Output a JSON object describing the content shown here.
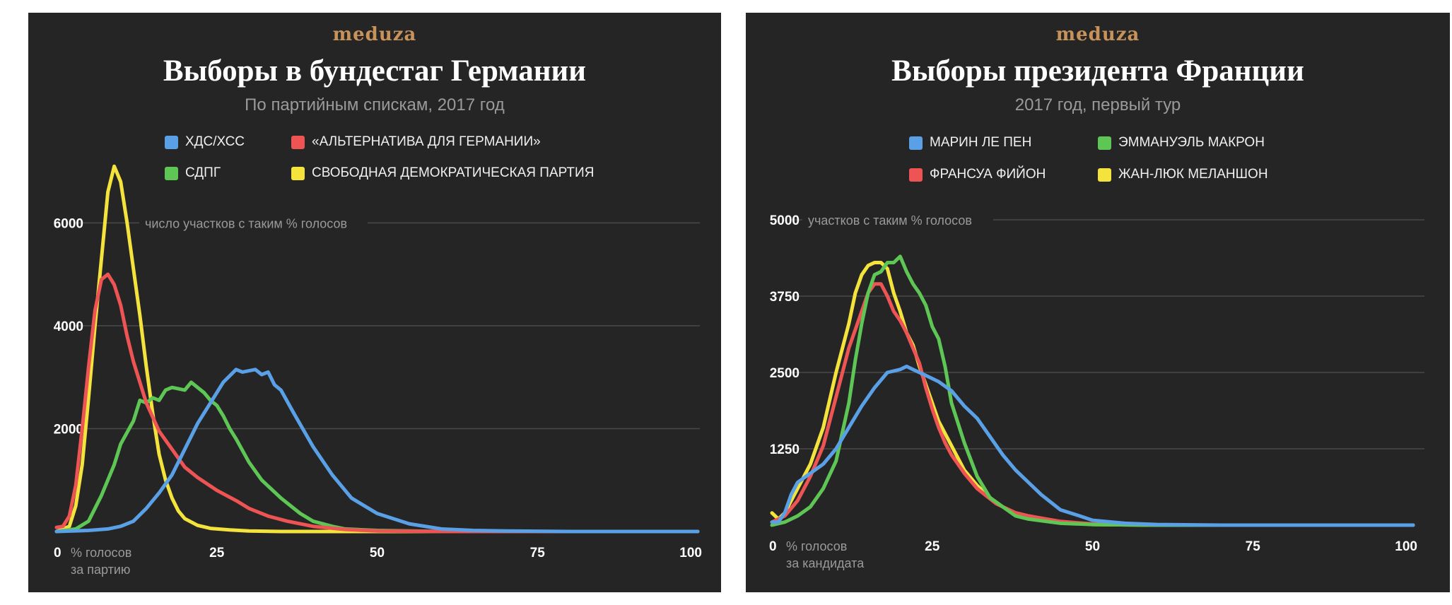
{
  "colors": {
    "blue": "#5aa0e6",
    "red": "#ee5454",
    "green": "#5ec655",
    "yellow": "#f3e33c",
    "background": "#252525",
    "grid": "#4a4a4a"
  },
  "charts": [
    {
      "logo": "meduza",
      "title": "Выборы в бундестаг Германии",
      "subtitle": "По партийным спискам, 2017 год",
      "legend": [
        {
          "label": "ХДС/ХСС",
          "color": "#5aa0e6"
        },
        {
          "label": "«АЛЬТЕРНАТИВА ДЛЯ ГЕРМАНИИ»",
          "color": "#ee5454"
        },
        {
          "label": "СДПГ",
          "color": "#5ec655"
        },
        {
          "label": "СВОБОДНАЯ ДЕМОКРАТИЧЕСКАЯ ПАРТИЯ",
          "color": "#f3e33c"
        }
      ],
      "y_axis_note": "число участков с таким % голосов",
      "x_axis_note": [
        "% голосов",
        "за партию"
      ]
    },
    {
      "logo": "meduza",
      "title": "Выборы президента Франции",
      "subtitle": "2017 год, первый тур",
      "legend": [
        {
          "label": "МАРИН ЛЕ ПЕН",
          "color": "#5aa0e6"
        },
        {
          "label": "ЭММАНУЭЛЬ МАКРОН",
          "color": "#5ec655"
        },
        {
          "label": "ФРАНСУА ФИЙОН",
          "color": "#ee5454"
        },
        {
          "label": "ЖАН-ЛЮК МЕЛАНШОН",
          "color": "#f3e33c"
        }
      ],
      "y_axis_note": "участков с таким % голосов",
      "x_axis_note": [
        "% голосов",
        "за кандидата"
      ]
    }
  ],
  "chart_data": [
    {
      "type": "line",
      "title": "Выборы в бундестаг Германии",
      "subtitle": "По партийным спискам, 2017 год",
      "xlabel": "% голосов за партию",
      "ylabel": "число участков с таким % голосов",
      "xlim": [
        0,
        100
      ],
      "ylim": [
        0,
        7200
      ],
      "x_ticks": [
        0,
        25,
        50,
        75,
        100
      ],
      "y_ticks": [
        0,
        2000,
        4000,
        6000
      ],
      "y_tick_labels": [
        "",
        "2000",
        "4000",
        "6000"
      ],
      "grid": true,
      "legend_position": "top",
      "series": [
        {
          "name": "ХДС/ХСС",
          "color": "#5aa0e6",
          "x": [
            0,
            5,
            8,
            10,
            12,
            14,
            16,
            18,
            20,
            22,
            24,
            26,
            28,
            29,
            31,
            32,
            33,
            34,
            35,
            37,
            40,
            43,
            46,
            50,
            55,
            60,
            65,
            70,
            80,
            100
          ],
          "y": [
            0,
            20,
            50,
            100,
            200,
            450,
            750,
            1100,
            1600,
            2100,
            2500,
            2900,
            3150,
            3100,
            3150,
            3050,
            3100,
            2850,
            2750,
            2300,
            1650,
            1100,
            650,
            350,
            150,
            50,
            20,
            10,
            0,
            0
          ]
        },
        {
          "name": "«АЛЬТЕРНАТИВА ДЛЯ ГЕРМАНИИ»",
          "color": "#ee5454",
          "x": [
            0,
            1,
            2,
            3,
            4,
            5,
            6,
            7,
            8,
            9,
            10,
            11,
            12,
            14,
            16,
            18,
            20,
            22,
            25,
            28,
            30,
            33,
            36,
            40,
            45,
            50,
            60,
            100
          ],
          "y": [
            80,
            100,
            300,
            900,
            2000,
            3200,
            4300,
            4900,
            5000,
            4800,
            4400,
            3800,
            3300,
            2500,
            1950,
            1600,
            1250,
            1050,
            800,
            600,
            450,
            300,
            200,
            100,
            40,
            10,
            0,
            0
          ]
        },
        {
          "name": "СДПГ",
          "color": "#5ec655",
          "x": [
            0,
            3,
            5,
            7,
            9,
            10,
            12,
            13,
            14,
            15,
            16,
            17,
            18,
            20,
            21,
            22,
            23,
            24,
            25,
            26,
            27,
            28,
            30,
            32,
            35,
            38,
            40,
            43,
            45,
            50,
            55,
            60,
            70,
            100
          ],
          "y": [
            0,
            50,
            200,
            700,
            1300,
            1700,
            2150,
            2550,
            2500,
            2600,
            2550,
            2750,
            2800,
            2750,
            2900,
            2800,
            2700,
            2550,
            2450,
            2250,
            2000,
            1800,
            1350,
            1000,
            650,
            350,
            200,
            100,
            50,
            20,
            10,
            0,
            0,
            0
          ]
        },
        {
          "name": "СВОБОДНАЯ ДЕМОКРАТИЧЕСКАЯ ПАРТИЯ",
          "color": "#f3e33c",
          "x": [
            0,
            2,
            3,
            4,
            5,
            6,
            7,
            8,
            9,
            10,
            11,
            12,
            13,
            14,
            15,
            16,
            17,
            18,
            19,
            20,
            22,
            24,
            27,
            30,
            35,
            40,
            50,
            100
          ],
          "y": [
            0,
            100,
            500,
            1300,
            2600,
            4000,
            5300,
            6600,
            7100,
            6800,
            6000,
            5100,
            4200,
            3200,
            2300,
            1500,
            1000,
            650,
            400,
            250,
            120,
            60,
            30,
            10,
            0,
            0,
            0,
            0
          ]
        }
      ]
    },
    {
      "type": "line",
      "title": "Выборы президента Франции",
      "subtitle": "2017 год, первый тур",
      "xlabel": "% голосов за кандидата",
      "ylabel": "участков с таким % голосов",
      "xlim": [
        0,
        100
      ],
      "ylim": [
        0,
        5000
      ],
      "x_ticks": [
        0,
        25,
        50,
        75,
        100
      ],
      "y_ticks": [
        0,
        1250,
        2500,
        3750,
        5000
      ],
      "y_tick_labels": [
        "",
        "1250",
        "2500",
        "3750",
        "5000"
      ],
      "grid": true,
      "legend_position": "top",
      "series": [
        {
          "name": "МАРИН ЛЕ ПЕН",
          "color": "#5aa0e6",
          "x": [
            0,
            1,
            2,
            3,
            4,
            6,
            8,
            10,
            12,
            14,
            16,
            18,
            20,
            21,
            22,
            24,
            26,
            28,
            30,
            32,
            34,
            36,
            38,
            40,
            42,
            45,
            48,
            50,
            55,
            60,
            70,
            100
          ],
          "y": [
            50,
            50,
            200,
            500,
            700,
            850,
            1000,
            1250,
            1600,
            1950,
            2250,
            2500,
            2550,
            2600,
            2550,
            2450,
            2350,
            2200,
            1950,
            1750,
            1450,
            1150,
            900,
            700,
            500,
            250,
            150,
            80,
            30,
            10,
            0,
            0
          ]
        },
        {
          "name": "ЭММАНУЭЛЬ МАКРОН",
          "color": "#5ec655",
          "x": [
            0,
            2,
            4,
            6,
            8,
            10,
            12,
            13,
            14,
            15,
            16,
            17,
            18,
            19,
            20,
            21,
            22,
            23,
            24,
            25,
            26,
            27,
            28,
            30,
            32,
            34,
            36,
            38,
            40,
            45,
            50,
            60,
            100
          ],
          "y": [
            0,
            50,
            150,
            300,
            600,
            1050,
            2000,
            2700,
            3300,
            3800,
            4100,
            4150,
            4300,
            4300,
            4400,
            4150,
            3950,
            3800,
            3600,
            3250,
            3050,
            2600,
            2000,
            1350,
            800,
            450,
            300,
            150,
            100,
            30,
            10,
            0,
            0
          ]
        },
        {
          "name": "ФРАНСУА ФИЙОН",
          "color": "#ee5454",
          "x": [
            0,
            2,
            4,
            6,
            8,
            10,
            12,
            14,
            15,
            16,
            17,
            18,
            19,
            20,
            21,
            22,
            23,
            24,
            25,
            26,
            27,
            28,
            30,
            32,
            35,
            38,
            40,
            45,
            50,
            60,
            100
          ],
          "y": [
            50,
            150,
            400,
            800,
            1300,
            2100,
            2900,
            3500,
            3800,
            3950,
            3950,
            3750,
            3500,
            3350,
            3150,
            2900,
            2650,
            2250,
            1900,
            1600,
            1350,
            1150,
            850,
            600,
            350,
            200,
            150,
            60,
            20,
            0,
            0
          ]
        },
        {
          "name": "ЖАН-ЛЮК МЕЛАНШОН",
          "color": "#f3e33c",
          "x": [
            0,
            1,
            2,
            3,
            4,
            6,
            8,
            10,
            12,
            13,
            14,
            15,
            16,
            17,
            18,
            19,
            20,
            21,
            22,
            23,
            24,
            25,
            26,
            28,
            30,
            32,
            34,
            36,
            38,
            40,
            45,
            50,
            60,
            100
          ],
          "y": [
            200,
            100,
            200,
            400,
            600,
            1000,
            1600,
            2500,
            3300,
            3800,
            4100,
            4250,
            4300,
            4300,
            4200,
            3800,
            3500,
            3150,
            2950,
            2600,
            2300,
            2000,
            1700,
            1300,
            900,
            650,
            450,
            300,
            200,
            150,
            50,
            10,
            0,
            0
          ]
        }
      ]
    }
  ]
}
